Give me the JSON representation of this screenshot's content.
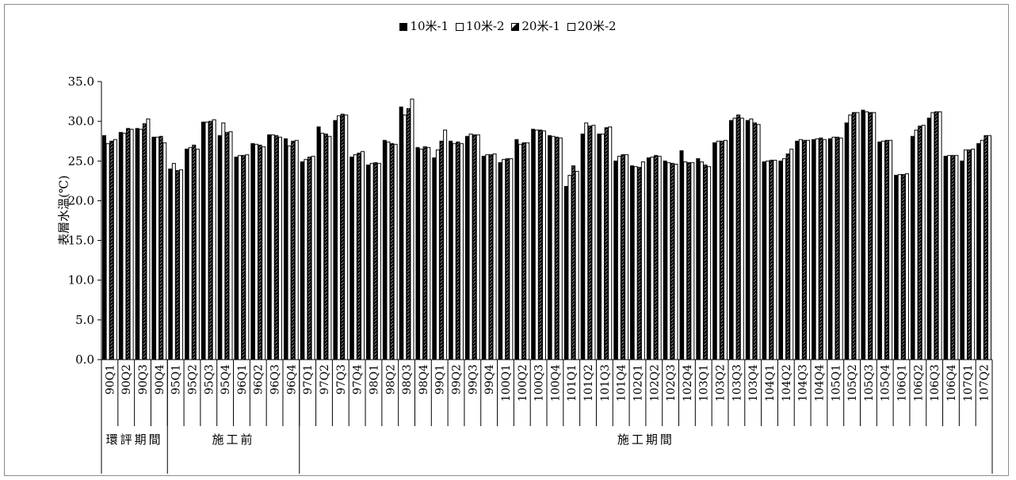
{
  "chart_data": {
    "type": "bar",
    "title": "",
    "xlabel": "",
    "ylabel": "表層水溫(℃)",
    "ylim": [
      0,
      35
    ],
    "yticks": [
      "0.0",
      "5.0",
      "10.0",
      "15.0",
      "20.0",
      "25.0",
      "30.0",
      "35.0"
    ],
    "grid": false,
    "legend_position": "top",
    "categories": [
      "90Q1",
      "90Q2",
      "90Q3",
      "90Q4",
      "95Q1",
      "95Q2",
      "95Q3",
      "95Q4",
      "96Q1",
      "96Q2",
      "96Q3",
      "96Q4",
      "97Q1",
      "97Q2",
      "97Q3",
      "97Q4",
      "98Q1",
      "98Q2",
      "98Q3",
      "98Q4",
      "99Q1",
      "99Q2",
      "99Q3",
      "99Q4",
      "100Q1",
      "100Q2",
      "100Q3",
      "100Q4",
      "101Q1",
      "101Q2",
      "101Q3",
      "101Q4",
      "102Q1",
      "102Q2",
      "102Q3",
      "102Q4",
      "103Q1",
      "103Q2",
      "103Q3",
      "103Q4",
      "104Q1",
      "104Q2",
      "104Q3",
      "104Q4",
      "105Q1",
      "105Q2",
      "105Q3",
      "105Q4",
      "106Q1",
      "106Q2",
      "106Q3",
      "106Q4",
      "107Q1",
      "107Q2"
    ],
    "groups": [
      {
        "label": "環評期間",
        "start": 0,
        "end": 3
      },
      {
        "label": "施工前",
        "start": 4,
        "end": 11
      },
      {
        "label": "施工期間",
        "start": 12,
        "end": 53
      }
    ],
    "series": [
      {
        "name": "10米-1",
        "style": "solid",
        "values": [
          28.2,
          28.6,
          29.1,
          28.0,
          24.0,
          26.5,
          29.9,
          28.2,
          25.5,
          27.2,
          28.3,
          27.8,
          24.9,
          29.3,
          30.1,
          25.5,
          24.5,
          27.6,
          31.8,
          26.7,
          25.4,
          27.5,
          28.1,
          25.6,
          24.8,
          27.7,
          29.0,
          28.2,
          21.8,
          28.4,
          28.4,
          25.0,
          24.4,
          25.4,
          25.0,
          26.3,
          25.3,
          27.3,
          30.1,
          30.1,
          24.9,
          25.0,
          27.5,
          27.7,
          27.8,
          29.8,
          31.4,
          27.4,
          23.2,
          28.1,
          30.4,
          25.6,
          25.0,
          27.2
        ]
      },
      {
        "name": "10米-2",
        "style": "open",
        "values": [
          27.2,
          28.5,
          29.0,
          28.0,
          24.7,
          26.7,
          29.9,
          29.8,
          25.7,
          27.1,
          28.3,
          26.9,
          25.2,
          28.5,
          30.7,
          25.8,
          24.7,
          27.4,
          30.8,
          26.5,
          26.4,
          27.2,
          28.4,
          25.8,
          25.2,
          27.1,
          28.9,
          28.1,
          23.2,
          29.8,
          28.4,
          25.6,
          24.3,
          25.5,
          24.8,
          24.9,
          24.9,
          27.5,
          30.4,
          30.3,
          25.0,
          25.3,
          27.7,
          27.8,
          28.0,
          30.8,
          31.2,
          27.5,
          23.3,
          28.9,
          31.1,
          25.7,
          26.4,
          27.6
        ]
      },
      {
        "name": "20米-1",
        "style": "hatched",
        "values": [
          27.5,
          29.1,
          29.7,
          28.1,
          23.8,
          27.0,
          30.0,
          28.6,
          25.7,
          27.0,
          28.2,
          27.5,
          25.5,
          28.4,
          30.9,
          26.0,
          24.8,
          27.2,
          31.6,
          26.8,
          27.5,
          27.4,
          28.3,
          25.8,
          25.3,
          27.3,
          28.9,
          28.0,
          24.4,
          29.4,
          29.2,
          25.8,
          24.2,
          25.7,
          24.7,
          24.8,
          24.5,
          27.5,
          30.8,
          29.8,
          25.1,
          25.9,
          27.6,
          27.9,
          28.0,
          31.1,
          31.1,
          27.6,
          23.3,
          29.4,
          31.2,
          25.7,
          26.4,
          28.2
        ]
      },
      {
        "name": "20米-2",
        "style": "open",
        "values": [
          27.7,
          29.0,
          30.3,
          27.3,
          23.9,
          26.5,
          30.2,
          28.7,
          25.8,
          26.8,
          28.0,
          27.6,
          25.6,
          28.1,
          30.8,
          26.2,
          24.7,
          27.1,
          32.8,
          26.7,
          28.9,
          27.2,
          28.3,
          25.9,
          25.3,
          27.3,
          28.8,
          27.9,
          23.7,
          29.5,
          29.3,
          25.8,
          24.9,
          25.6,
          24.6,
          24.8,
          24.3,
          27.6,
          30.4,
          29.6,
          25.1,
          26.5,
          27.6,
          27.7,
          27.9,
          31.1,
          31.1,
          27.6,
          23.4,
          29.5,
          31.2,
          25.7,
          26.5,
          28.2
        ]
      }
    ]
  }
}
